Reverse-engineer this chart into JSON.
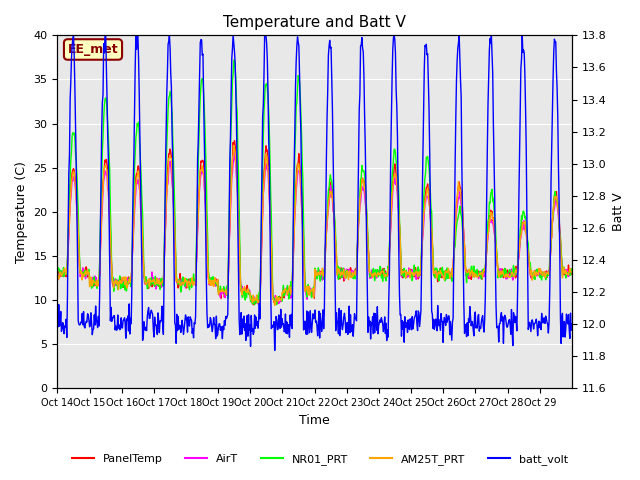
{
  "title": "Temperature and Batt V",
  "xlabel": "Time",
  "ylabel_left": "Temperature (C)",
  "ylabel_right": "Batt V",
  "ylim_left": [
    0,
    40
  ],
  "ylim_right": [
    11.6,
    13.8
  ],
  "yticks_left": [
    0,
    5,
    10,
    15,
    20,
    25,
    30,
    35,
    40
  ],
  "yticks_right": [
    11.6,
    11.8,
    12.0,
    12.2,
    12.4,
    12.6,
    12.8,
    13.0,
    13.2,
    13.4,
    13.6,
    13.8
  ],
  "x_tick_positions": [
    0,
    1,
    2,
    3,
    4,
    5,
    6,
    7,
    8,
    9,
    10,
    11,
    12,
    13,
    14,
    15
  ],
  "x_tick_labels": [
    "Oct 14",
    "Oct 15",
    "Oct 16",
    "Oct 17",
    "Oct 18",
    "Oct 19",
    "Oct 20",
    "Oct 21",
    "Oct 22",
    "Oct 23",
    "Oct 24",
    "Oct 25",
    "Oct 26",
    "Oct 27",
    "Oct 28",
    "Oct 29"
  ],
  "annotation_text": "EE_met",
  "annotation_color": "#8B0000",
  "annotation_bg": "#FFFFC0",
  "bg_color": "#E8E8E8",
  "series_colors": {
    "PanelTemp": "#FF0000",
    "AirT": "#FF00FF",
    "NR01_PRT": "#00FF00",
    "AM25T_PRT": "#FFA500",
    "batt_volt": "#0000FF"
  },
  "legend_labels": [
    "PanelTemp",
    "AirT",
    "NR01_PRT",
    "AM25T_PRT",
    "batt_volt"
  ],
  "num_days": 16,
  "pts_per_day": 48
}
